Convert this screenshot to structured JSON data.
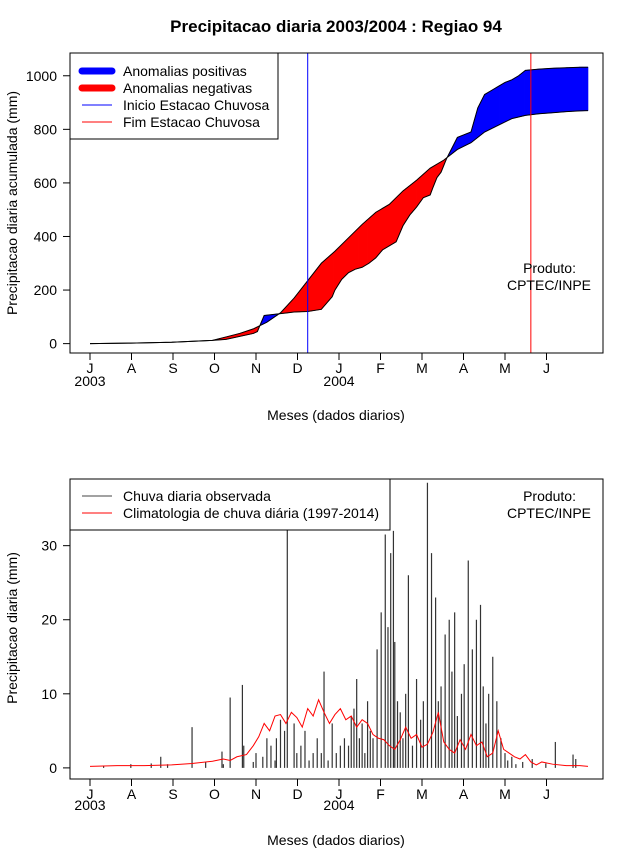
{
  "chart_data": [
    {
      "type": "area",
      "title": "Precipitacao diaria 2003/2004 : Regiao 94",
      "xlabel": "Meses (dados diarios)",
      "ylabel": "Precipitacao diaria acumulada (mm)",
      "ylim": [
        -35,
        1085
      ],
      "yticks": [
        0,
        200,
        400,
        600,
        800,
        1000
      ],
      "month_ticks": [
        "J",
        "A",
        "S",
        "O",
        "N",
        "D",
        "J",
        "F",
        "M",
        "A",
        "M",
        "J"
      ],
      "year_labels": [
        "2003",
        "2004"
      ],
      "legend": {
        "position": "top-left",
        "entries": [
          "Anomalias positivas",
          "Anomalias negativas",
          "Inicio Estacao Chuvosa",
          "Fim Estacao Chuvosa"
        ]
      },
      "product_label": [
        "Produto:",
        "CPTEC/INPE"
      ],
      "colors": {
        "positive": "#0000ff",
        "negative": "#ff0000",
        "inicio": "#0000ff",
        "fim": "#ff0000"
      },
      "season_start_day": 160,
      "season_end_day": 324,
      "series": [
        {
          "name": "Precipitacao observada acumulada",
          "day": [
            0,
            30,
            60,
            90,
            100,
            120,
            123,
            128,
            140,
            145,
            150,
            160,
            170,
            178,
            180,
            185,
            190,
            195,
            200,
            205,
            210,
            215,
            220,
            225,
            230,
            235,
            240,
            245,
            250,
            252,
            255,
            258,
            260,
            262,
            265,
            270,
            275,
            280,
            285,
            290,
            295,
            300,
            305,
            310,
            315,
            320,
            330,
            340,
            350,
            360,
            366
          ],
          "values": [
            0,
            2,
            5,
            12,
            16,
            38,
            45,
            105,
            112,
            115,
            118,
            120,
            128,
            175,
            200,
            240,
            265,
            278,
            285,
            300,
            320,
            350,
            365,
            380,
            440,
            480,
            510,
            545,
            555,
            582,
            620,
            640,
            665,
            690,
            720,
            770,
            780,
            790,
            880,
            930,
            945,
            960,
            975,
            985,
            1000,
            1020,
            1025,
            1028,
            1030,
            1032,
            1032
          ]
        },
        {
          "name": "Climatologia acumulada",
          "day": [
            0,
            30,
            60,
            90,
            100,
            110,
            120,
            130,
            140,
            150,
            160,
            170,
            180,
            190,
            200,
            210,
            220,
            230,
            240,
            250,
            260,
            270,
            280,
            290,
            300,
            310,
            320,
            330,
            340,
            350,
            360,
            366
          ],
          "values": [
            0,
            2,
            5,
            12,
            25,
            38,
            55,
            80,
            115,
            170,
            235,
            300,
            345,
            395,
            445,
            490,
            520,
            570,
            610,
            655,
            685,
            725,
            750,
            790,
            815,
            840,
            852,
            858,
            862,
            866,
            869,
            870
          ]
        }
      ]
    },
    {
      "type": "bar",
      "title": "",
      "xlabel": "Meses (dados diarios)",
      "ylabel": "Precipitacao diaria (mm)",
      "ylim": [
        -1.5,
        39
      ],
      "yticks": [
        0,
        10,
        20,
        30
      ],
      "month_ticks": [
        "J",
        "A",
        "S",
        "O",
        "N",
        "D",
        "J",
        "F",
        "M",
        "A",
        "M",
        "J"
      ],
      "year_labels": [
        "2003",
        "2004"
      ],
      "legend": {
        "position": "top-left",
        "entries": [
          "Chuva diaria observada",
          "Climatologia de chuva diária (1997-2014)"
        ]
      },
      "product_label": [
        "Produto:",
        "CPTEC/INPE"
      ],
      "colors": {
        "observed": "#000000",
        "climatology": "#ff0000"
      },
      "observed_daily": {
        "x": [
          10,
          30,
          45,
          52,
          57,
          75,
          85,
          97,
          98,
          103,
          112,
          113,
          120,
          122,
          127,
          130,
          133,
          136,
          137,
          140,
          143,
          145,
          150,
          152,
          155,
          158,
          161,
          164,
          167,
          170,
          172,
          175,
          178,
          181,
          184,
          187,
          190,
          192,
          194,
          196,
          198,
          200,
          202,
          204,
          206,
          208,
          211,
          214,
          217,
          219,
          221,
          223,
          224,
          226,
          228,
          230,
          232,
          234,
          237,
          240,
          243,
          245,
          248,
          251,
          254,
          256,
          258,
          261,
          264,
          266,
          268,
          270,
          273,
          275,
          278,
          281,
          284,
          287,
          289,
          291,
          293,
          296,
          299,
          302,
          305,
          307,
          310,
          313,
          318,
          325,
          335,
          342,
          355,
          357
        ],
        "values": [
          0.3,
          0.5,
          0.6,
          1.5,
          0.5,
          5.5,
          0.8,
          2.2,
          0.5,
          9.5,
          11.2,
          3.0,
          0.8,
          2.0,
          1.5,
          4.0,
          3.0,
          1.0,
          4.0,
          6.5,
          5.0,
          33.0,
          6.0,
          2.0,
          3.0,
          5.0,
          1.0,
          2.0,
          4.0,
          2.0,
          13.0,
          1.0,
          6.0,
          2.0,
          3.0,
          4.0,
          3.0,
          7.0,
          8.0,
          12.0,
          4.0,
          6.0,
          2.0,
          9.0,
          5.0,
          4.0,
          16.0,
          21.0,
          31.5,
          19.0,
          29.0,
          32.0,
          17.0,
          9.0,
          7.5,
          4.0,
          10.0,
          26.0,
          3.0,
          12.0,
          6.5,
          9.0,
          38.5,
          29.0,
          23.0,
          9.0,
          11.0,
          18.0,
          20.0,
          13.0,
          21.0,
          7.0,
          10.0,
          14.0,
          28.0,
          16.0,
          20.0,
          22.0,
          11.0,
          6.0,
          10.0,
          15.0,
          9.0,
          4.0,
          2.0,
          1.0,
          1.5,
          0.5,
          0.8,
          1.2,
          0.6,
          3.5,
          1.8,
          1.2
        ]
      },
      "climatology_daily": {
        "x": [
          0,
          20,
          40,
          60,
          75,
          90,
          98,
          103,
          108,
          115,
          120,
          124,
          128,
          132,
          136,
          140,
          144,
          148,
          152,
          156,
          160,
          164,
          168,
          172,
          176,
          180,
          184,
          188,
          192,
          196,
          200,
          204,
          208,
          212,
          216,
          220,
          224,
          228,
          232,
          236,
          240,
          244,
          248,
          252,
          256,
          260,
          264,
          268,
          272,
          276,
          280,
          284,
          288,
          292,
          296,
          300,
          304,
          308,
          312,
          316,
          320,
          324,
          328,
          332,
          340,
          350,
          360,
          366
        ],
        "values": [
          0.2,
          0.3,
          0.3,
          0.4,
          0.6,
          0.9,
          1.2,
          1.0,
          1.5,
          1.8,
          3.0,
          4.2,
          6.0,
          5.0,
          7.0,
          7.2,
          6.0,
          7.5,
          6.8,
          5.5,
          8.0,
          7.0,
          9.2,
          7.5,
          6.0,
          7.2,
          8.0,
          6.5,
          7.0,
          5.5,
          6.5,
          6.0,
          4.5,
          4.0,
          3.8,
          3.0,
          2.5,
          3.8,
          5.5,
          4.0,
          4.5,
          2.8,
          3.2,
          4.8,
          7.5,
          3.5,
          2.5,
          2.0,
          3.8,
          2.5,
          4.5,
          3.0,
          3.5,
          1.5,
          2.0,
          5.0,
          2.5,
          2.0,
          1.5,
          1.2,
          1.8,
          0.8,
          0.4,
          0.8,
          0.5,
          0.3,
          0.3,
          0.2
        ]
      }
    }
  ]
}
